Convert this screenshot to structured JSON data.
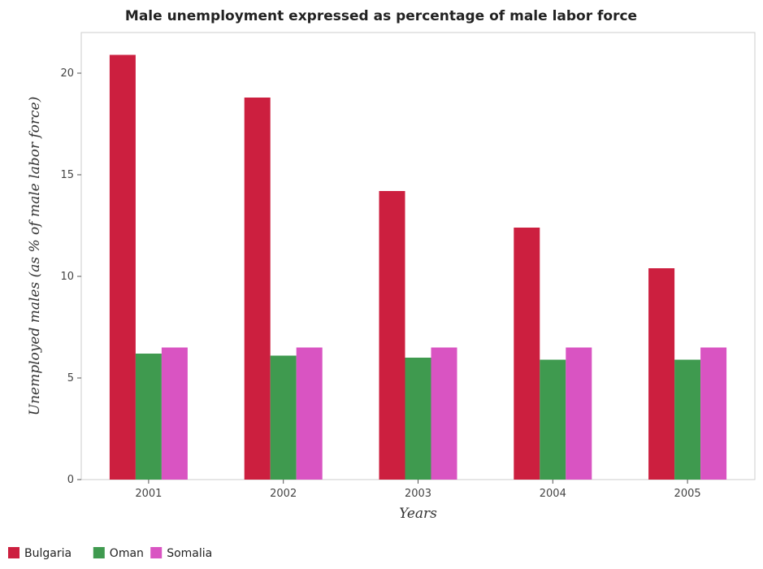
{
  "chart_data": {
    "type": "bar",
    "title": "Male unemployment expressed as percentage of male labor force",
    "xlabel": "Years",
    "ylabel": "Unemployed males (as % of male labor force)",
    "categories": [
      "2001",
      "2002",
      "2003",
      "2004",
      "2005"
    ],
    "series": [
      {
        "name": "Bulgaria",
        "color": "#cc1f3f",
        "values": [
          20.9,
          18.8,
          14.2,
          12.4,
          10.4
        ]
      },
      {
        "name": "Oman",
        "color": "#3f9a4f",
        "values": [
          6.2,
          6.1,
          6.0,
          5.9,
          5.9
        ]
      },
      {
        "name": "Somalia",
        "color": "#d954c2",
        "values": [
          6.5,
          6.5,
          6.5,
          6.5,
          6.5
        ]
      }
    ],
    "ylim": [
      0,
      22
    ],
    "yticks": [
      0,
      5,
      10,
      15,
      20
    ],
    "grid": false,
    "legend_position": "bottom-left"
  }
}
